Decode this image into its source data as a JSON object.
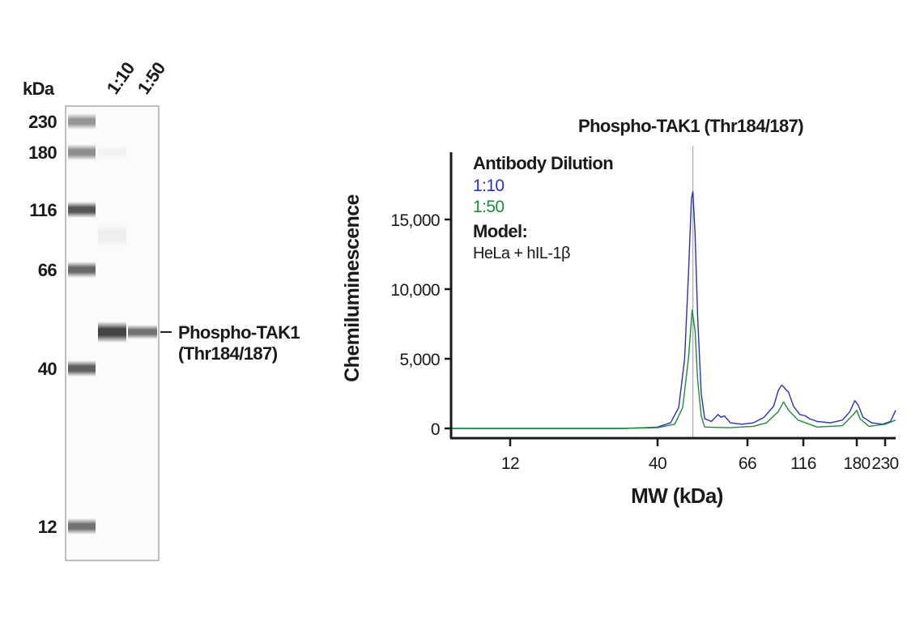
{
  "blot": {
    "unit_label": "kDa",
    "lane_labels": [
      "1:10",
      "1:50"
    ],
    "ladder": [
      "230",
      "180",
      "116",
      "66",
      "40",
      "12"
    ],
    "target_label_line1": "Phospho-TAK1",
    "target_label_line2": "(Thr184/187)"
  },
  "chart_data": {
    "type": "line",
    "title": "Phospho-TAK1 (Thr184/187)",
    "xlabel": "MW (kDa)",
    "ylabel": "Chemiluminescence",
    "x_ticks": [
      12,
      40,
      66,
      116,
      180,
      230
    ],
    "x_tick_labels": [
      "12",
      "40",
      "66",
      "116",
      "180",
      "230"
    ],
    "xlim": [
      7.5,
      250
    ],
    "y_ticks": [
      0,
      5000,
      10000,
      15000
    ],
    "y_tick_labels": [
      "0",
      "5,000",
      "10,000",
      "15,000"
    ],
    "ylim": [
      0,
      19000
    ],
    "grid": false,
    "reference_line_x": 48.7,
    "legend": {
      "title": "Antibody Dilution",
      "model_title": "Model:",
      "model_value": "HeLa + hIL-1β",
      "placement": "top-left"
    },
    "series": [
      {
        "name": "1:10",
        "color": "#2b2fbf",
        "points": [
          [
            7.5,
            0
          ],
          [
            30,
            0
          ],
          [
            36,
            50
          ],
          [
            40,
            100
          ],
          [
            43,
            400
          ],
          [
            45,
            1500
          ],
          [
            46.5,
            5000
          ],
          [
            47.5,
            11000
          ],
          [
            48.3,
            16500
          ],
          [
            48.7,
            17000
          ],
          [
            49.3,
            14000
          ],
          [
            50,
            8000
          ],
          [
            51,
            2500
          ],
          [
            52,
            700
          ],
          [
            54,
            500
          ],
          [
            56,
            1000
          ],
          [
            57,
            800
          ],
          [
            58,
            900
          ],
          [
            60,
            400
          ],
          [
            64,
            300
          ],
          [
            70,
            400
          ],
          [
            78,
            800
          ],
          [
            86,
            1600
          ],
          [
            90,
            2700
          ],
          [
            93,
            3100
          ],
          [
            95,
            3000
          ],
          [
            97,
            2800
          ],
          [
            100,
            2600
          ],
          [
            105,
            1600
          ],
          [
            112,
            1000
          ],
          [
            118,
            900
          ],
          [
            122,
            700
          ],
          [
            130,
            500
          ],
          [
            145,
            400
          ],
          [
            160,
            600
          ],
          [
            170,
            1200
          ],
          [
            177,
            2000
          ],
          [
            182,
            1700
          ],
          [
            190,
            800
          ],
          [
            205,
            400
          ],
          [
            225,
            300
          ],
          [
            240,
            500
          ],
          [
            250,
            1300
          ]
        ]
      },
      {
        "name": "1:50",
        "color": "#1e8a3a",
        "points": [
          [
            7.5,
            0
          ],
          [
            30,
            0
          ],
          [
            40,
            50
          ],
          [
            44,
            300
          ],
          [
            46,
            1500
          ],
          [
            47.5,
            5000
          ],
          [
            48.5,
            8500
          ],
          [
            49.3,
            7000
          ],
          [
            50,
            3500
          ],
          [
            51,
            900
          ],
          [
            52,
            100
          ],
          [
            60,
            50
          ],
          [
            70,
            150
          ],
          [
            80,
            400
          ],
          [
            90,
            1200
          ],
          [
            95,
            1900
          ],
          [
            100,
            1300
          ],
          [
            110,
            600
          ],
          [
            130,
            100
          ],
          [
            160,
            200
          ],
          [
            175,
            1000
          ],
          [
            180,
            1300
          ],
          [
            185,
            700
          ],
          [
            200,
            150
          ],
          [
            230,
            300
          ],
          [
            250,
            600
          ]
        ]
      }
    ]
  }
}
